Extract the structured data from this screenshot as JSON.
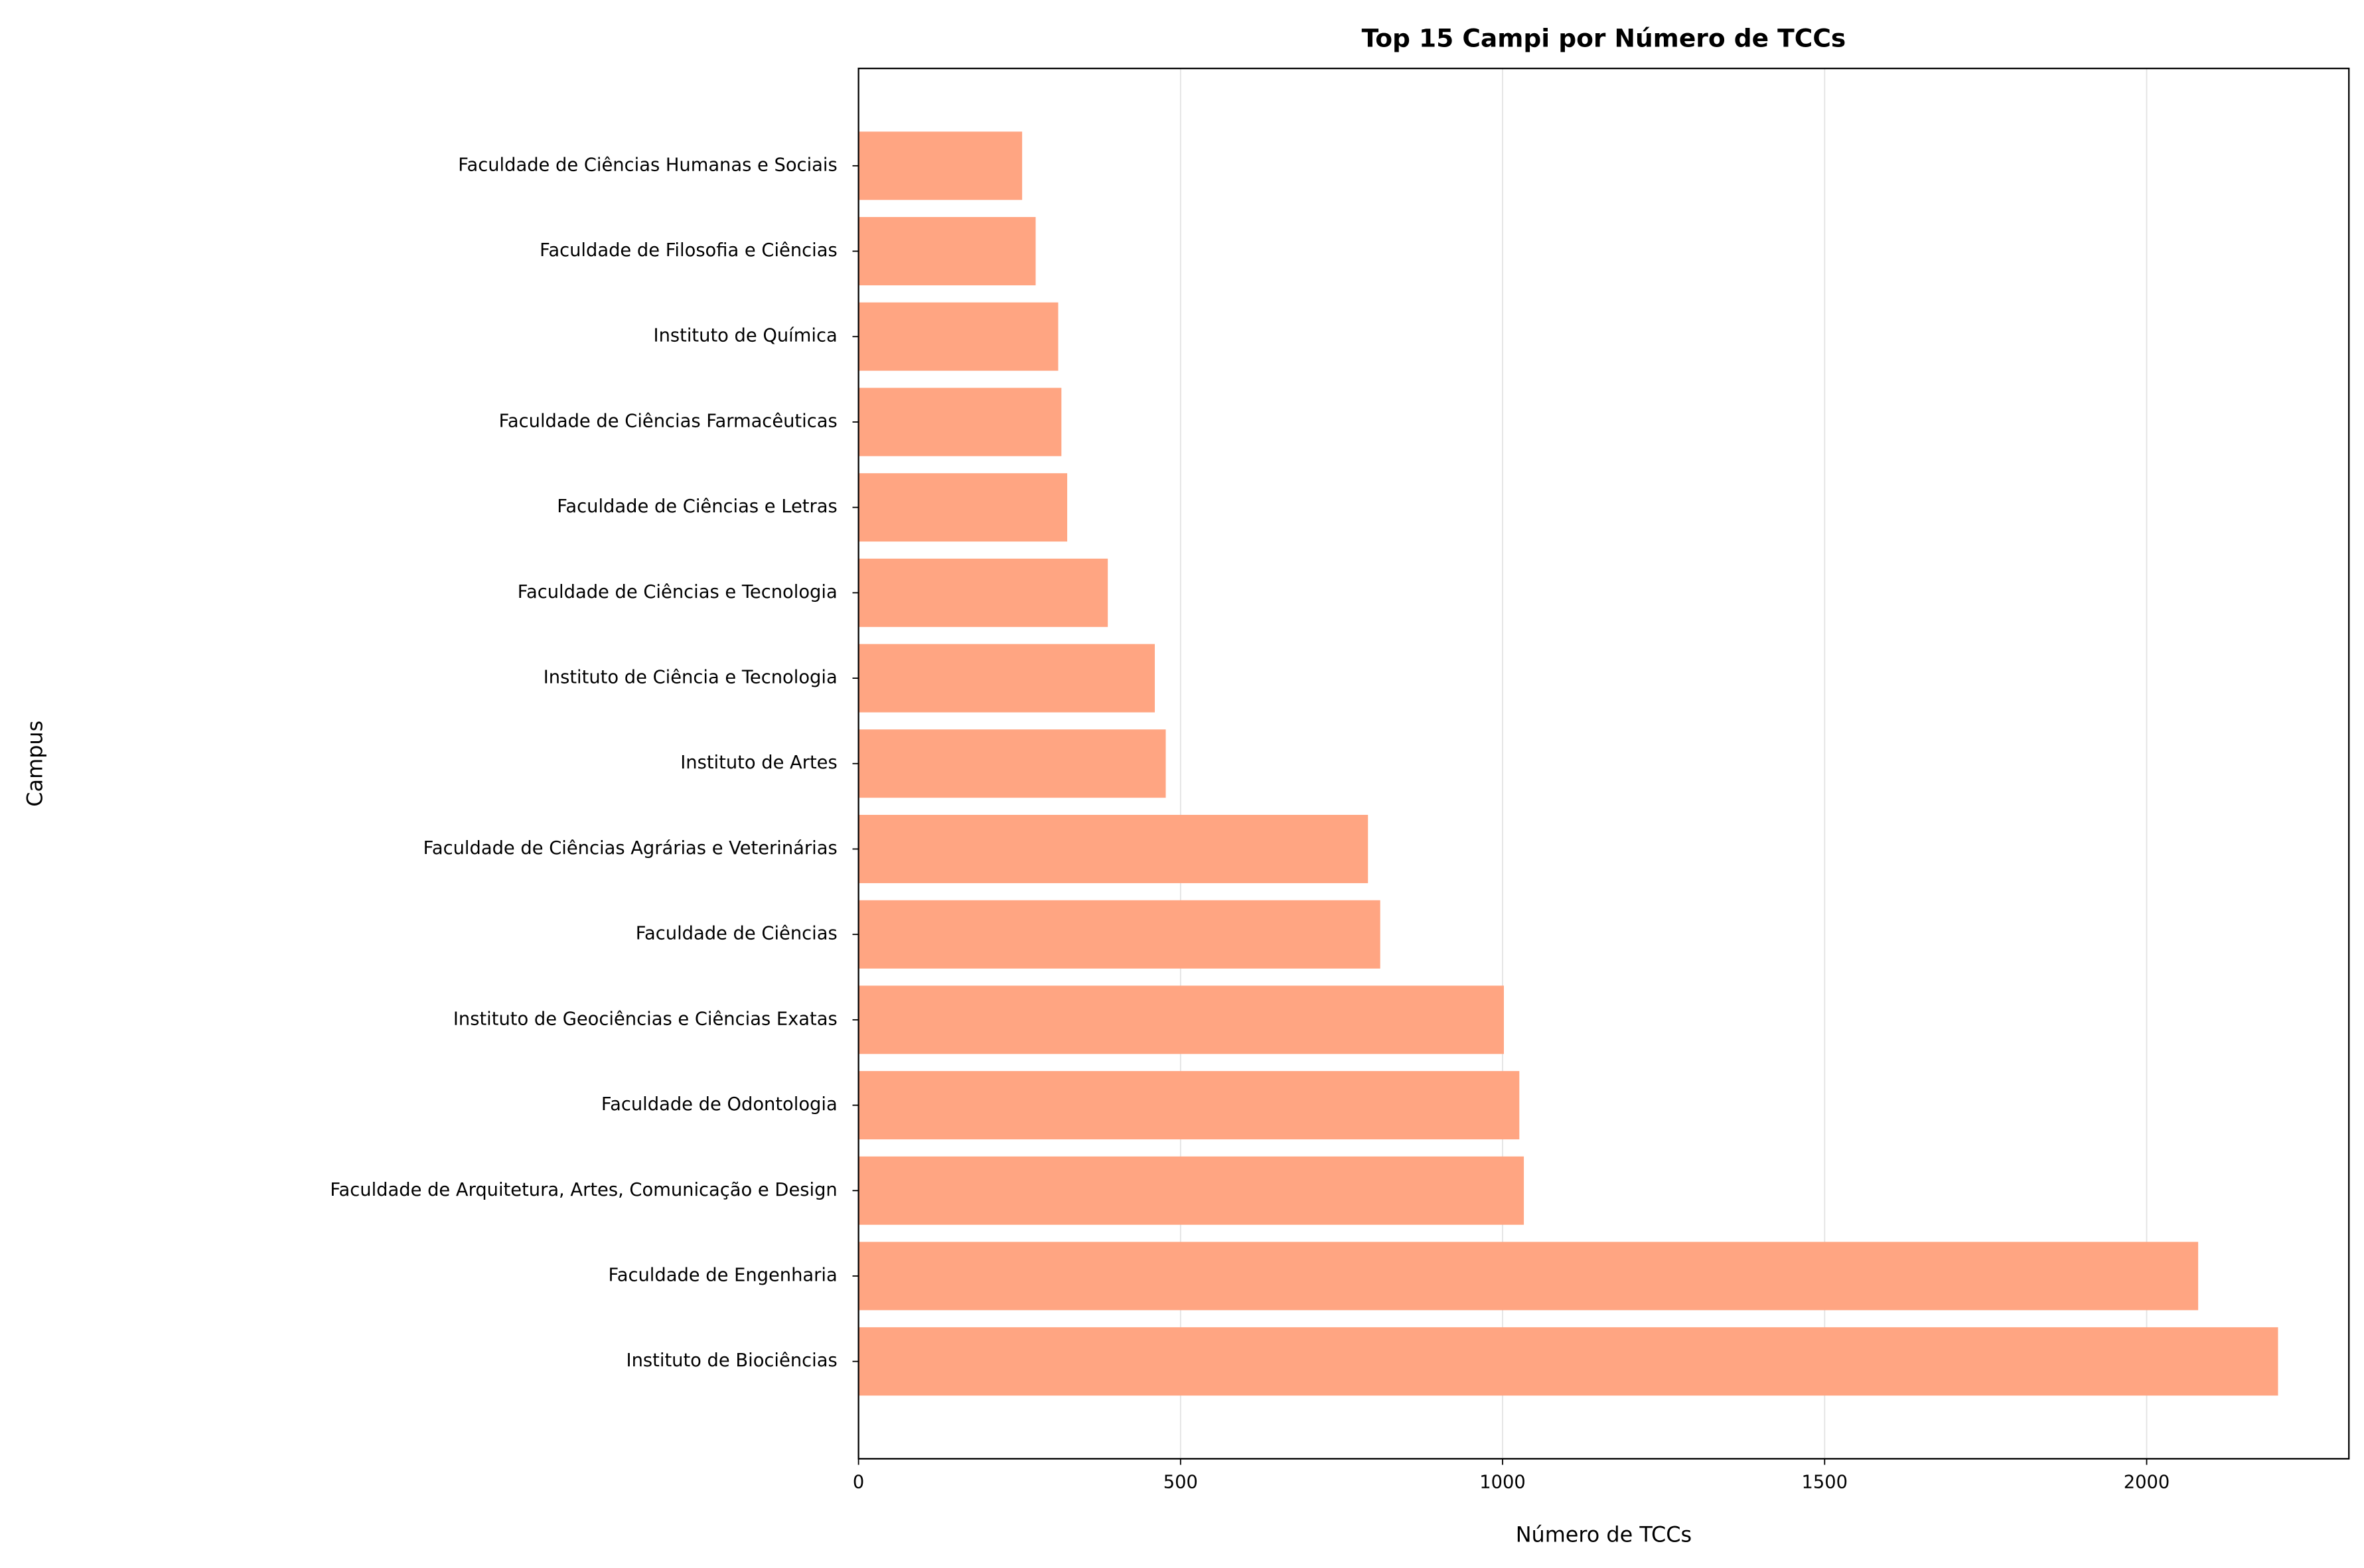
{
  "chart_data": {
    "type": "barh",
    "title": "Top 15 Campi por Número de TCCs",
    "xlabel": "Número de TCCs",
    "ylabel": "Campus",
    "categories": [
      "Instituto de Biociências",
      "Faculdade de Engenharia",
      "Faculdade de Arquitetura, Artes, Comunicação e Design",
      "Faculdade de Odontologia",
      "Instituto de Geociências e Ciências Exatas",
      "Faculdade de Ciências",
      "Faculdade de Ciências Agrárias e Veterinárias",
      "Instituto de Artes",
      "Instituto de Ciência e Tecnologia",
      "Faculdade de Ciências e Tecnologia",
      "Faculdade de Ciências e Letras",
      "Faculdade de Ciências Farmacêuticas",
      "Instituto de Química",
      "Faculdade de Filosofia e Ciências",
      "Faculdade de Ciências Humanas e Sociais"
    ],
    "values": [
      2204,
      2080,
      1033,
      1026,
      1002,
      810,
      791,
      477,
      460,
      387,
      324,
      315,
      310,
      275,
      254
    ],
    "color": "#ffa582",
    "xlim": [
      0,
      2314
    ],
    "xticks": [
      0,
      500,
      1000,
      1500,
      2000
    ],
    "grid": true
  }
}
